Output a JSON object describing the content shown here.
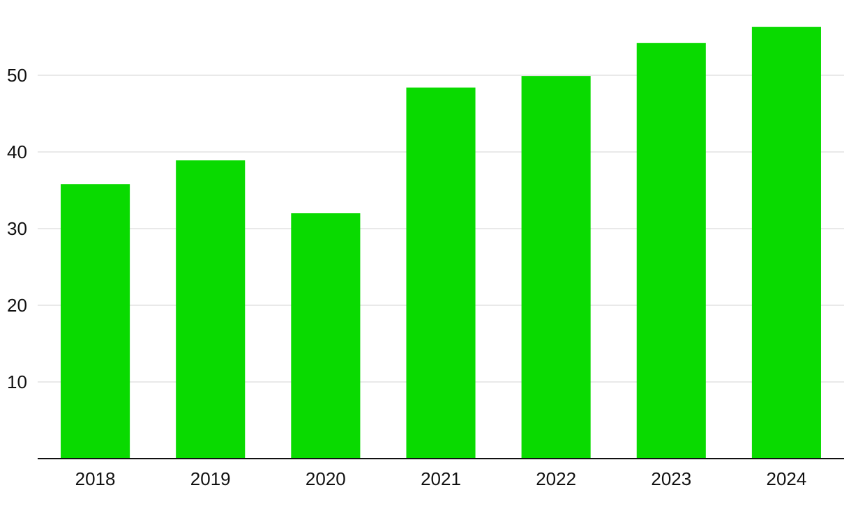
{
  "chart_data": {
    "type": "bar",
    "title": "",
    "xlabel": "",
    "ylabel": "",
    "categories": [
      "2018",
      "2019",
      "2020",
      "2021",
      "2022",
      "2023",
      "2024"
    ],
    "series": [
      {
        "values": [
          35.8,
          38.9,
          32.0,
          48.4,
          49.9,
          54.2,
          56.3
        ]
      }
    ],
    "ylim": [
      0,
      58
    ],
    "yticks": [
      10,
      20,
      30,
      40,
      50
    ],
    "grid": true,
    "legend": "none",
    "colors": {
      "bar": "#09da00",
      "grid": "#e2e2e2",
      "axis": "#111111",
      "text": "#111111"
    }
  }
}
